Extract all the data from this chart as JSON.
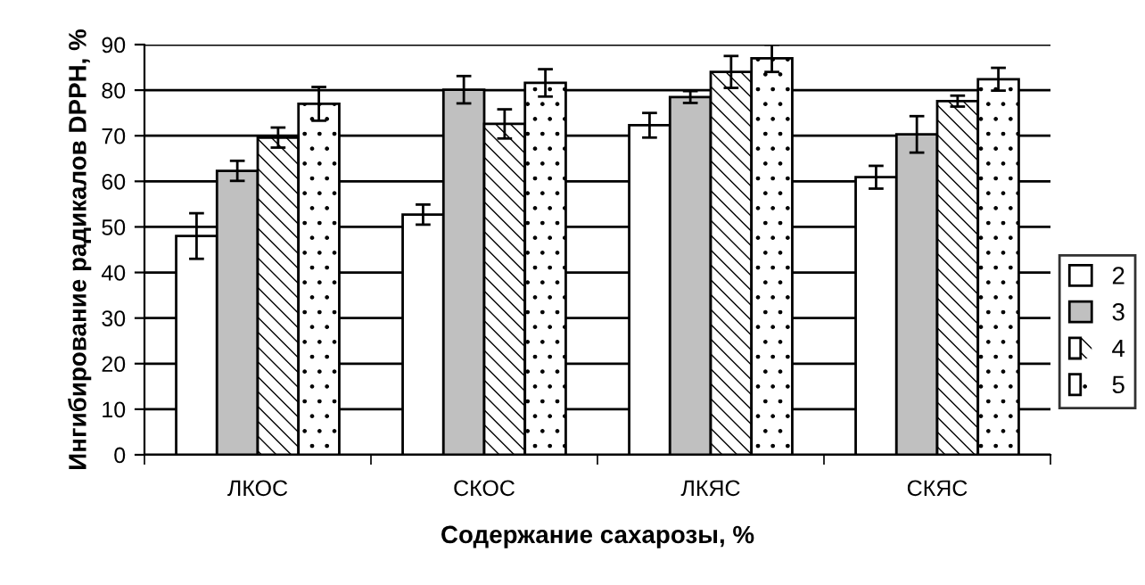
{
  "chart_data": {
    "type": "bar",
    "xlabel": "Содержание сахарозы, %",
    "ylabel": "Ингибирование радикалов DPPH, %",
    "categories": [
      "ЛКОС",
      "СКОС",
      "ЛКЯС",
      "СКЯС"
    ],
    "series": [
      {
        "name": "2",
        "color": "#ffffff",
        "values": [
          48,
          52.7,
          72.3,
          60.9
        ],
        "errors": [
          5,
          2.2,
          2.7,
          2.5
        ]
      },
      {
        "name": "3",
        "color": "#c0c0c0",
        "values": [
          62.3,
          80.1,
          78.5,
          70.3
        ],
        "errors": [
          2.2,
          3,
          1.3,
          4
        ]
      },
      {
        "name": "4",
        "color": "#ffffff",
        "values": [
          69.6,
          72.6,
          84,
          77.6
        ],
        "errors": [
          2.2,
          3.2,
          3.5,
          1.2
        ]
      },
      {
        "name": "5",
        "color": "#ffffff",
        "values": [
          77,
          81.6,
          87,
          82.4
        ],
        "errors": [
          3.7,
          3,
          3,
          2.5
        ]
      }
    ],
    "ylim": [
      0,
      90
    ],
    "yticks": [
      0,
      10,
      20,
      30,
      40,
      50,
      60,
      70,
      80,
      90
    ],
    "grid": "y",
    "legend": "right"
  }
}
